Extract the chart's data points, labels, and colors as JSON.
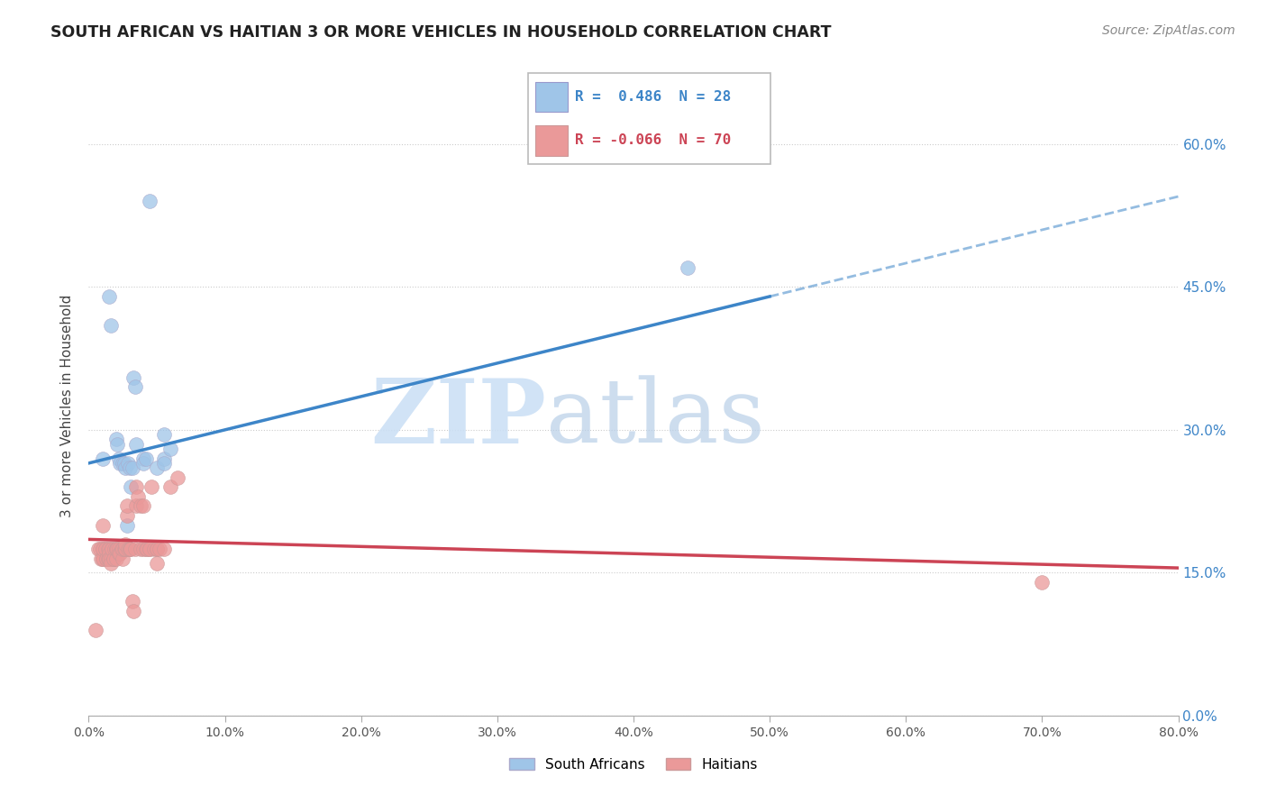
{
  "title": "SOUTH AFRICAN VS HAITIAN 3 OR MORE VEHICLES IN HOUSEHOLD CORRELATION CHART",
  "source": "Source: ZipAtlas.com",
  "ylabel": "3 or more Vehicles in Household",
  "blue_color": "#9fc5e8",
  "pink_color": "#ea9999",
  "blue_line_color": "#3d85c8",
  "pink_line_color": "#cc4455",
  "blue_label_color": "#3d85c8",
  "xlim": [
    0.0,
    0.8
  ],
  "ylim": [
    0.0,
    0.65
  ],
  "x_ticks": [
    0.0,
    0.1,
    0.2,
    0.3,
    0.4,
    0.5,
    0.6,
    0.7,
    0.8
  ],
  "y_ticks": [
    0.0,
    0.15,
    0.3,
    0.45,
    0.6
  ],
  "r_blue": "R =  0.486  N = 28",
  "r_pink": "R = -0.066  N = 70",
  "south_african_x": [
    0.01,
    0.015,
    0.016,
    0.02,
    0.021,
    0.022,
    0.023,
    0.025,
    0.026,
    0.027,
    0.028,
    0.029,
    0.03,
    0.031,
    0.032,
    0.033,
    0.034,
    0.035,
    0.04,
    0.04,
    0.042,
    0.045,
    0.05,
    0.055,
    0.055,
    0.055,
    0.44,
    0.06
  ],
  "south_african_y": [
    0.27,
    0.44,
    0.41,
    0.29,
    0.285,
    0.27,
    0.265,
    0.265,
    0.265,
    0.26,
    0.2,
    0.265,
    0.26,
    0.24,
    0.26,
    0.355,
    0.345,
    0.285,
    0.27,
    0.265,
    0.27,
    0.54,
    0.26,
    0.27,
    0.265,
    0.295,
    0.47,
    0.28
  ],
  "haitian_x": [
    0.005,
    0.007,
    0.008,
    0.009,
    0.01,
    0.01,
    0.01,
    0.01,
    0.01,
    0.012,
    0.012,
    0.013,
    0.013,
    0.014,
    0.014,
    0.015,
    0.015,
    0.015,
    0.015,
    0.016,
    0.016,
    0.017,
    0.017,
    0.018,
    0.018,
    0.019,
    0.02,
    0.02,
    0.02,
    0.021,
    0.022,
    0.022,
    0.023,
    0.024,
    0.025,
    0.025,
    0.026,
    0.027,
    0.027,
    0.027,
    0.028,
    0.028,
    0.029,
    0.03,
    0.03,
    0.031,
    0.032,
    0.033,
    0.034,
    0.035,
    0.035,
    0.036,
    0.038,
    0.038,
    0.04,
    0.04,
    0.042,
    0.043,
    0.045,
    0.045,
    0.046,
    0.048,
    0.05,
    0.05,
    0.05,
    0.052,
    0.055,
    0.06,
    0.065,
    0.7
  ],
  "haitian_y": [
    0.09,
    0.175,
    0.175,
    0.165,
    0.165,
    0.165,
    0.175,
    0.175,
    0.2,
    0.175,
    0.175,
    0.165,
    0.165,
    0.165,
    0.175,
    0.175,
    0.17,
    0.165,
    0.165,
    0.165,
    0.16,
    0.175,
    0.175,
    0.165,
    0.165,
    0.175,
    0.165,
    0.175,
    0.175,
    0.175,
    0.175,
    0.17,
    0.17,
    0.175,
    0.165,
    0.175,
    0.175,
    0.175,
    0.175,
    0.18,
    0.21,
    0.22,
    0.175,
    0.175,
    0.175,
    0.175,
    0.12,
    0.11,
    0.175,
    0.22,
    0.24,
    0.23,
    0.175,
    0.22,
    0.175,
    0.22,
    0.175,
    0.175,
    0.175,
    0.175,
    0.24,
    0.175,
    0.175,
    0.175,
    0.16,
    0.175,
    0.175,
    0.24,
    0.25,
    0.14
  ]
}
